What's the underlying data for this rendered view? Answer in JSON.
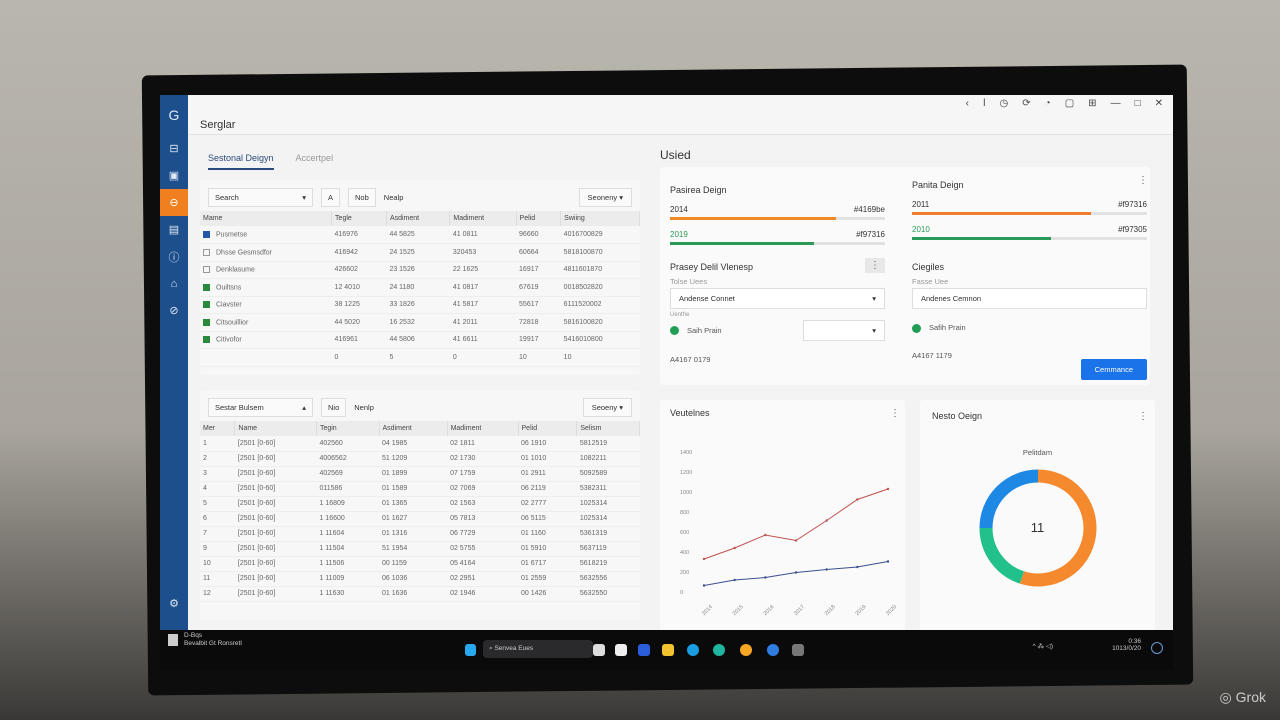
{
  "app": {
    "title": "Serglar",
    "page_heading": "Usied"
  },
  "titlebar_icons": [
    "back-icon",
    "info-icon",
    "clock-icon",
    "refresh-icon",
    "sync-icon",
    "chat-icon",
    "grid-icon",
    "minimize-icon",
    "maximize-icon",
    "close-icon"
  ],
  "titlebar_glyphs": [
    "‹",
    "ǀ",
    "◷",
    "⟳",
    "◔",
    "▢",
    "⊞",
    "—",
    "□",
    "✕"
  ],
  "sidebar": {
    "items": [
      "inbox",
      "calendar",
      "mail",
      "image",
      "info",
      "alerts",
      "settings-user"
    ],
    "glyphs": [
      "⊟",
      "▣",
      "⊖",
      "▤",
      "ⓘ",
      "⌂",
      "⊘"
    ],
    "active": 2,
    "bottom_glyph": "⚙"
  },
  "tabs": [
    {
      "label": "Sestonal Deigyn",
      "active": true
    },
    {
      "label": "Accertpel",
      "active": false
    }
  ],
  "table1": {
    "search_placeholder": "Search",
    "a_label": "A",
    "filter_label": "Nob",
    "group_label": "Nealp",
    "sort_label": "Seoneny",
    "columns": [
      "Mame",
      "Tegle",
      "Asdiment",
      "Madiment",
      "Pelid",
      "Swiing"
    ],
    "rows": [
      {
        "checked": "blue",
        "cells": [
          "Pusmetse",
          "416976",
          "44 5825",
          "41 0811",
          "96660",
          "4016700829"
        ]
      },
      {
        "checked": "off",
        "cells": [
          "Dhsse Gesmsdfor",
          "416942",
          "24 1525",
          "320453",
          "60664",
          "5818100870"
        ]
      },
      {
        "checked": "off",
        "cells": [
          "Denklasume",
          "426602",
          "23 1526",
          "22 1625",
          "16917",
          "4811601870"
        ]
      },
      {
        "checked": "on",
        "cells": [
          "Ouiltsns",
          "12 4010",
          "24 1180",
          "41 0817",
          "67619",
          "0018502820"
        ]
      },
      {
        "checked": "on",
        "cells": [
          "Ciavster",
          "38 1225",
          "33 1826",
          "41 5817",
          "55617",
          "6111520002"
        ]
      },
      {
        "checked": "on",
        "cells": [
          "Citsouillior",
          "44 5020",
          "16 2532",
          "41 2011",
          "72818",
          "5816100820"
        ]
      },
      {
        "checked": "on",
        "cells": [
          "Citivofor",
          "416961",
          "44 5806",
          "41 6611",
          "19917",
          "5416010800"
        ]
      }
    ],
    "footer": [
      "0",
      "5",
      "0",
      "10",
      "›",
      "10"
    ]
  },
  "table2": {
    "select_label": "Sestar Bulsem",
    "filter_label": "Nio",
    "group_label": "Nenlp",
    "sort_label": "Seoeny",
    "columns": [
      "Mer",
      "Name",
      "Tegin",
      "Asdiment",
      "Madiment",
      "Pelid",
      "Selism"
    ],
    "rows": [
      [
        "1",
        "[2501 [0-60]",
        "402560",
        "04 1985",
        "02 1811",
        "06 1910",
        "5812519"
      ],
      [
        "2",
        "[2501 [0-60]",
        "4006562",
        "51 1209",
        "02 1730",
        "01 1010",
        "1082211"
      ],
      [
        "3",
        "[2501 [0-60]",
        "402569",
        "01 1899",
        "07 1759",
        "01 2911",
        "5092589"
      ],
      [
        "4",
        "[2501 [0-60]",
        "011586",
        "01 1589",
        "02 7069",
        "06 2119",
        "5382311"
      ],
      [
        "5",
        "[2501 [0-60]",
        "1 16809",
        "01 1365",
        "02 1563",
        "02 2777",
        "1025314"
      ],
      [
        "6",
        "[2501 [0-60]",
        "1 16600",
        "01 1627",
        "05 7813",
        "06 5115",
        "1025314"
      ],
      [
        "7",
        "[2501 [0-60]",
        "1 11604",
        "01 1316",
        "06 7729",
        "01 1160",
        "5361319"
      ],
      [
        "9",
        "[2501 [0-60]",
        "1 11504",
        "51 1954",
        "02 5755",
        "01 5910",
        "5637119"
      ],
      [
        "10",
        "[2501 [0-60]",
        "1 11506",
        "00 1159",
        "05 4164",
        "01 6717",
        "5618219"
      ],
      [
        "11",
        "[2501 [0-60]",
        "1 11009",
        "06 1036",
        "02 2951",
        "01 2559",
        "5632556"
      ],
      [
        "12",
        "[2501 [0-60]",
        "1 11630",
        "01 1636",
        "02 1946",
        "00 1426",
        "5632550"
      ]
    ]
  },
  "progress_left": {
    "title": "Pasirea Deign",
    "rows": [
      {
        "year": "2014",
        "code": "#4169be",
        "fill": 0.77,
        "color": "#f08a24"
      },
      {
        "year": "2019",
        "code": "#f97316",
        "fill": 0.67,
        "color": "#2a9a58"
      }
    ]
  },
  "progress_right": {
    "title": "Panita Deign",
    "rows": [
      {
        "year": "2011",
        "code": "#f97316",
        "fill": 0.76,
        "color": "#ef7d2a"
      },
      {
        "year": "2010",
        "code": "#f97305",
        "fill": 0.59,
        "color": "#2a9a58"
      }
    ]
  },
  "form_left": {
    "title": "Prasey Delil Vlenesp",
    "field_label": "Tolse Uees",
    "field_value": "Andense Connet",
    "sub_label": "Uenthe",
    "status_label": "Saih Prain",
    "footer_text": "A4167 0179"
  },
  "form_right": {
    "title": "Ciegiles",
    "field_label": "Fasse Uee",
    "field_value": "Andenes Cemnon",
    "status_label": "Safih Prain",
    "footer_text": "A4167 1179",
    "button_label": "Cemmance"
  },
  "chart_data": [
    {
      "type": "line",
      "title": "Veutelnes",
      "ylim": [
        0,
        1400
      ],
      "yticks": [
        "0",
        "200",
        "400",
        "600",
        "800",
        "1000",
        "1200",
        "1400"
      ],
      "categories": [
        "2014",
        "2015",
        "2016",
        "2017",
        "2018",
        "2019",
        "2020"
      ],
      "series": [
        {
          "color": "#c0504d",
          "values": [
            330,
            440,
            570,
            515,
            715,
            925,
            1030
          ]
        },
        {
          "color": "#3b4f8f",
          "values": [
            65,
            120,
            145,
            195,
            225,
            250,
            305
          ]
        }
      ],
      "grid": false
    },
    {
      "type": "pie",
      "title": "Nesto Oeign",
      "subtitle": "Pelitdam",
      "center_label": "11",
      "donut": true,
      "slices": [
        {
          "value": 55,
          "color": "#f5892e"
        },
        {
          "value": 20,
          "color": "#22c08a"
        },
        {
          "value": 25,
          "color": "#1e88e5"
        }
      ]
    }
  ],
  "taskbar": {
    "notif_title": "D-Bqs",
    "notif_sub": "Bevalbit Gt Ronsretl",
    "search_text": "Senvea Eues",
    "clock_time": "0:36",
    "clock_date": "1013/0/20"
  },
  "watermark": "Grok"
}
